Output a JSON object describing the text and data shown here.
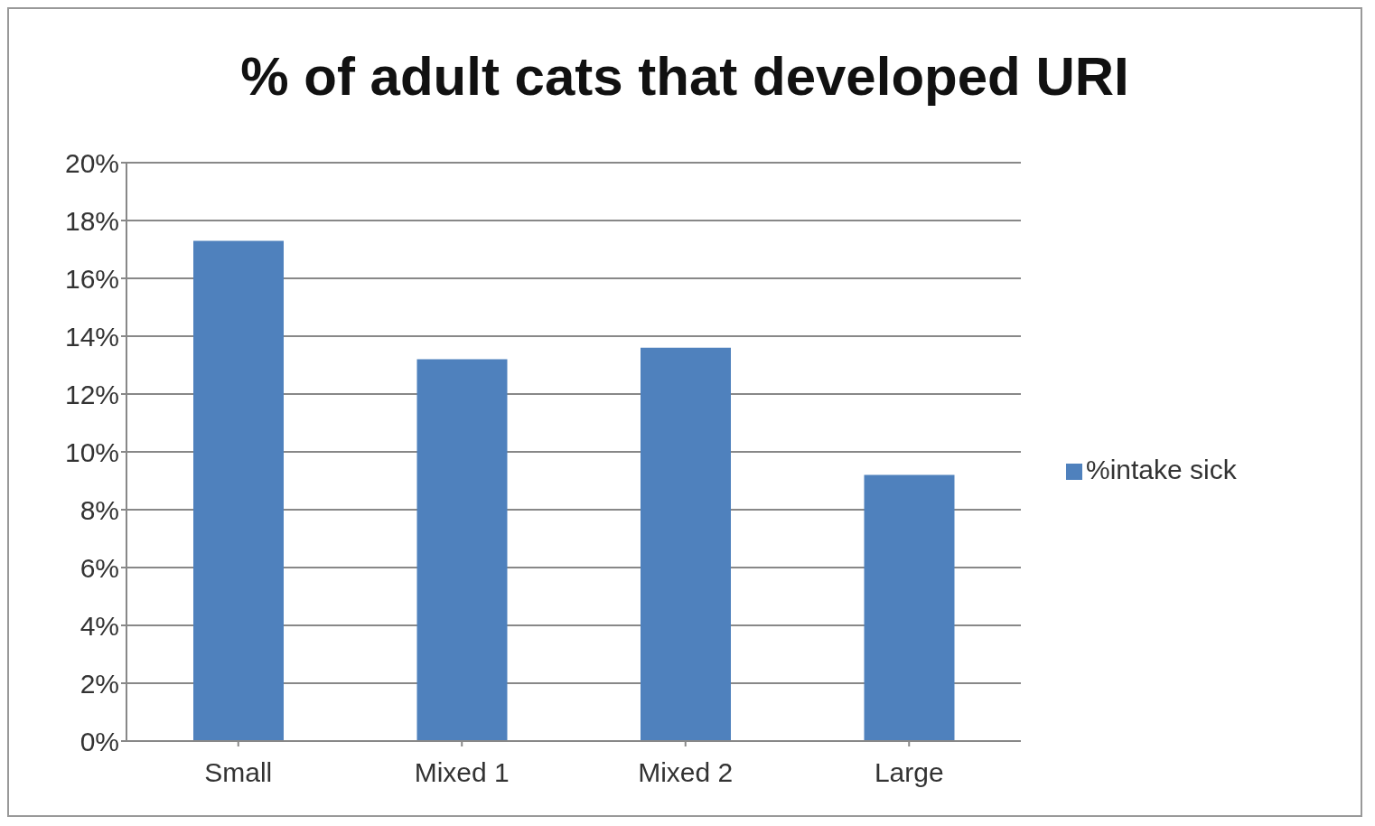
{
  "chart_data": {
    "type": "bar",
    "title": "% of adult cats that developed URI",
    "categories": [
      "Small",
      "Mixed 1",
      "Mixed 2",
      "Large"
    ],
    "series": [
      {
        "name": "%intake sick",
        "color": "#4f81bd",
        "values": [
          17.3,
          13.2,
          13.6,
          9.2
        ]
      }
    ],
    "ylim": [
      0,
      20
    ],
    "yticks": [
      {
        "value": 0,
        "label": "0%"
      },
      {
        "value": 2,
        "label": "2%"
      },
      {
        "value": 4,
        "label": "4%"
      },
      {
        "value": 6,
        "label": "6%"
      },
      {
        "value": 8,
        "label": "8%"
      },
      {
        "value": 10,
        "label": "10%"
      },
      {
        "value": 12,
        "label": "12%"
      },
      {
        "value": 14,
        "label": "14%"
      },
      {
        "value": 16,
        "label": "16%"
      },
      {
        "value": 18,
        "label": "18%"
      },
      {
        "value": 20,
        "label": "20%"
      }
    ],
    "grid": "y",
    "legend": "right"
  }
}
